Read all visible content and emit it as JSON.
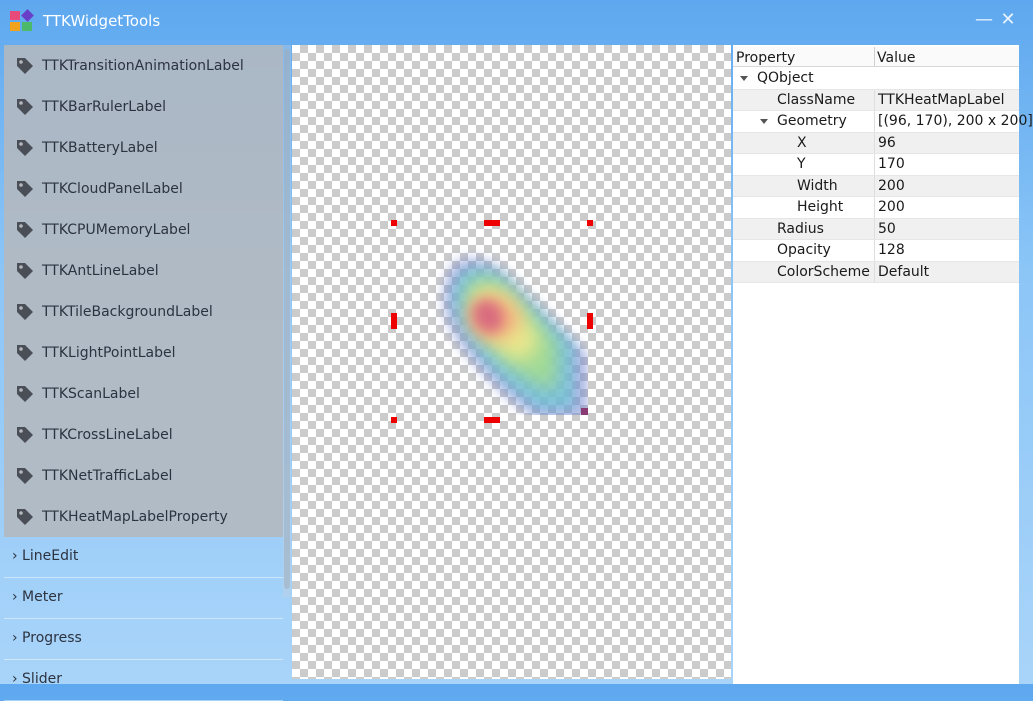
{
  "window": {
    "title": "TTKWidgetTools",
    "minimize_glyph": "—",
    "close_glyph": "✕"
  },
  "sidebar": {
    "items": [
      {
        "label": "TTKTransitionAnimationLabel",
        "icon": "tag-icon"
      },
      {
        "label": "TTKBarRulerLabel",
        "icon": "tag-icon"
      },
      {
        "label": "TTKBatteryLabel",
        "icon": "tag-icon"
      },
      {
        "label": "TTKCloudPanelLabel",
        "icon": "tag-icon"
      },
      {
        "label": "TTKCPUMemoryLabel",
        "icon": "tag-icon"
      },
      {
        "label": "TTKAntLineLabel",
        "icon": "tag-icon"
      },
      {
        "label": "TTKTileBackgroundLabel",
        "icon": "tag-icon"
      },
      {
        "label": "TTKLightPointLabel",
        "icon": "tag-icon"
      },
      {
        "label": "TTKScanLabel",
        "icon": "tag-icon"
      },
      {
        "label": "TTKCrossLineLabel",
        "icon": "tag-icon"
      },
      {
        "label": "TTKNetTrafficLabel",
        "icon": "tag-icon"
      },
      {
        "label": "TTKHeatMapLabelProperty",
        "icon": "tag-icon"
      }
    ],
    "groups": [
      {
        "label": "› LineEdit"
      },
      {
        "label": "› Meter"
      },
      {
        "label": "› Progress"
      },
      {
        "label": "› Slider"
      }
    ]
  },
  "properties": {
    "header": {
      "property": "Property",
      "value": "Value"
    },
    "rows": [
      {
        "name": "QObject",
        "value": ""
      },
      {
        "name": "ClassName",
        "value": "TTKHeatMapLabel"
      },
      {
        "name": "Geometry",
        "value": "[(96, 170), 200 x 200]"
      },
      {
        "name": "X",
        "value": "96"
      },
      {
        "name": "Y",
        "value": "170"
      },
      {
        "name": "Width",
        "value": "200"
      },
      {
        "name": "Height",
        "value": "200"
      },
      {
        "name": "Radius",
        "value": "50"
      },
      {
        "name": "Opacity",
        "value": "128"
      },
      {
        "name": "ColorScheme",
        "value": "Default"
      }
    ]
  },
  "colors": {
    "selection_handle": "#ee0000",
    "titlebar_gradient_top": "#5ea8ef",
    "sidebar_background": "#b4b8be"
  }
}
